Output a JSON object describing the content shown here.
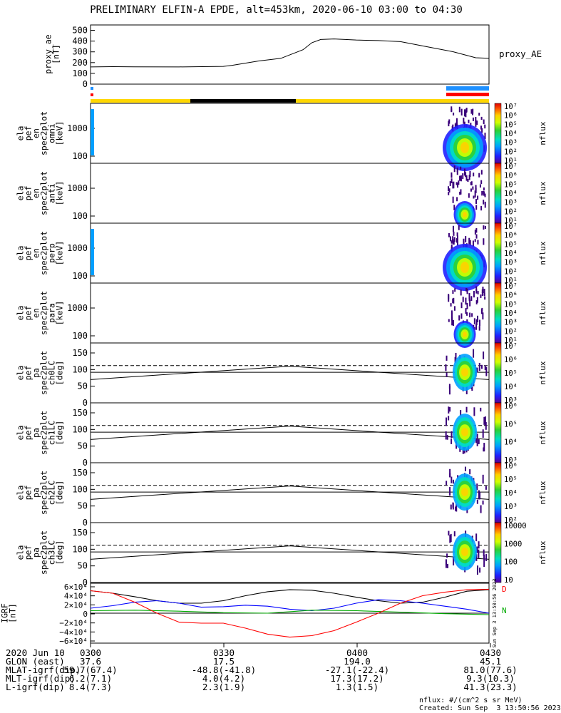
{
  "title": "PRELIMINARY ELFIN-A EPDE, alt=453km, 2020-06-10 03:00 to 04:30",
  "proxy_ae": {
    "ylabel": "proxy_ae\n[nT]",
    "side_label": "proxy_AE",
    "yticks": [
      "500",
      "400",
      "300",
      "200",
      "100",
      "0"
    ],
    "ylim": [
      0,
      550
    ]
  },
  "panels": [
    {
      "ylabel": "ela\npef\nen\nspec2plot\nomni\n[keV]",
      "yticks": [
        "1000",
        "100"
      ],
      "kind": "energy",
      "cbar": {
        "label": "nflux",
        "ticks": [
          "10⁷",
          "10⁶",
          "10⁵",
          "10⁴",
          "10³",
          "10²",
          "10¹"
        ]
      }
    },
    {
      "ylabel": "ela\npef\nen\nspec2plot\nanti\n[keV]",
      "yticks": [
        "1000",
        "100"
      ],
      "kind": "energy",
      "cbar": {
        "label": "nflux",
        "ticks": [
          "10⁷",
          "10⁶",
          "10⁵",
          "10⁴",
          "10³",
          "10²",
          "10¹"
        ]
      }
    },
    {
      "ylabel": "ela\npef\nen\nspec2plot\nperp\n[keV]",
      "yticks": [
        "1000",
        "100"
      ],
      "kind": "energy",
      "cbar": {
        "label": "nflux",
        "ticks": [
          "10⁷",
          "10⁶",
          "10⁵",
          "10⁴",
          "10³",
          "10²",
          "10¹"
        ]
      }
    },
    {
      "ylabel": "ela\npef\nen\nspec2plot\npara\n[keV]",
      "yticks": [
        "1000",
        "100"
      ],
      "kind": "energy",
      "cbar": {
        "label": "nflux",
        "ticks": [
          "10⁷",
          "10⁶",
          "10⁵",
          "10⁴",
          "10³",
          "10²",
          "10¹"
        ]
      }
    },
    {
      "ylabel": "ela\npef\npa\nspec2plot\nch0LC\n[deg]",
      "yticks": [
        "150",
        "100",
        "50",
        "0"
      ],
      "kind": "pa",
      "cbar": {
        "label": "nflux",
        "ticks": [
          "10⁷",
          "10⁶",
          "10⁵",
          "10⁴",
          "10³"
        ]
      }
    },
    {
      "ylabel": "ela\npef\npa\nspec2plot\nch1LC\n[deg]",
      "yticks": [
        "150",
        "100",
        "50",
        "0"
      ],
      "kind": "pa",
      "cbar": {
        "label": "nflux",
        "ticks": [
          "10⁶",
          "10⁵",
          "10⁴",
          "10³"
        ]
      }
    },
    {
      "ylabel": "ela\npef\npa\nspec2plot\nch2LC\n[deg]",
      "yticks": [
        "150",
        "100",
        "50",
        "0"
      ],
      "kind": "pa",
      "cbar": {
        "label": "nflux",
        "ticks": [
          "10⁶",
          "10⁵",
          "10⁴",
          "10³",
          "10²"
        ]
      }
    },
    {
      "ylabel": "ela\npef\npa\nspec2plot\nch3LC\n[deg]",
      "yticks": [
        "150",
        "100",
        "50",
        "0"
      ],
      "kind": "pa",
      "cbar": {
        "label": "nflux",
        "ticks": [
          "10000",
          "1000",
          "100",
          "10"
        ]
      }
    }
  ],
  "grf": {
    "ylabel": "IGRF\n[nT]",
    "yticks": [
      "6×10⁴",
      "4×10⁴",
      "2×10⁴",
      "0",
      "−2×10⁴",
      "−4×10⁴",
      "−6×10⁴"
    ],
    "ylim": [
      -60000,
      60000
    ],
    "legend": [
      "D",
      "N"
    ],
    "stamp": "Sun Sep  3 13:50:56 2023"
  },
  "chart_data": {
    "type": "line",
    "title": "PRELIMINARY ELFIN-A EPDE, alt=453km, 2020-06-10 03:00 to 04:30",
    "xlim_minutes": [
      0,
      90
    ],
    "proxy_ae": {
      "x_min": [
        0,
        5,
        10,
        20,
        30,
        32,
        38,
        43,
        48,
        50,
        52,
        55,
        60,
        65,
        70,
        75,
        82,
        87,
        90
      ],
      "y": [
        160,
        162,
        161,
        160,
        165,
        175,
        215,
        240,
        320,
        385,
        415,
        420,
        410,
        405,
        395,
        355,
        300,
        245,
        240
      ]
    },
    "grf_series": [
      {
        "color": "#000000",
        "x_min": [
          0,
          5,
          10,
          15,
          20,
          25,
          30,
          35,
          40,
          45,
          50,
          55,
          60,
          65,
          70,
          75,
          80,
          85,
          90
        ],
        "y": [
          45000,
          40000,
          33000,
          25000,
          20000,
          20000,
          25000,
          35000,
          43000,
          47000,
          46000,
          40000,
          32000,
          25000,
          20000,
          22000,
          32000,
          44000,
          47000
        ]
      },
      {
        "color": "#0000ff",
        "x_min": [
          0,
          5,
          10,
          15,
          20,
          25,
          30,
          35,
          40,
          45,
          50,
          55,
          60,
          65,
          70,
          75,
          80,
          85,
          90
        ],
        "y": [
          10000,
          15000,
          22000,
          25000,
          20000,
          12000,
          13000,
          16000,
          14000,
          8000,
          5000,
          10000,
          20000,
          27000,
          25000,
          20000,
          14000,
          8000,
          0
        ]
      },
      {
        "color": "#00aa00",
        "x_min": [
          0,
          10,
          20,
          30,
          40,
          45,
          50,
          60,
          70,
          80,
          90
        ],
        "y": [
          5000,
          6000,
          4000,
          1000,
          0,
          3000,
          6000,
          5000,
          2000,
          -1000,
          -3000
        ]
      },
      {
        "color": "#ff0000",
        "x_min": [
          0,
          5,
          10,
          15,
          20,
          25,
          30,
          35,
          40,
          45,
          50,
          55,
          60,
          65,
          70,
          75,
          80,
          85,
          90
        ],
        "y": [
          45000,
          40000,
          22000,
          0,
          -18000,
          -20000,
          -20000,
          -30000,
          -42000,
          -48000,
          -45000,
          -35000,
          -18000,
          0,
          20000,
          35000,
          42000,
          47000,
          48000
        ]
      }
    ],
    "pa_lines": {
      "dashed_deg": 112,
      "solid_deg_edges": 70,
      "solid_deg_mid": 110,
      "flat_deg": 92
    }
  },
  "ephemeris": {
    "rows": [
      {
        "label": "2020 Jun 10",
        "values": [
          "0300",
          "0330",
          "0400",
          "0430"
        ]
      },
      {
        "label": "GLON (east)",
        "values": [
          "37.6",
          "17.5",
          "194.0",
          "45.1"
        ]
      },
      {
        "label": "MLAT-igrf(dip)",
        "values": [
          "59.7(67.4)",
          "-48.8(-41.8)",
          "-27.1(-22.4)",
          "81.0(77.6)"
        ]
      },
      {
        "label": "MLT-igrf(dip)",
        "values": [
          "6.2(7.1)",
          "4.0(4.2)",
          "17.3(17.2)",
          "9.3(10.3)"
        ]
      },
      {
        "label": "L-igrf(dip)",
        "values": [
          "8.4(7.3)",
          "2.3(1.9)",
          "1.3(1.5)",
          "41.3(23.3)"
        ]
      }
    ]
  },
  "footer": {
    "units": "nflux: #/(cm^2 s sr MeV)",
    "created": "Created: Sun Sep  3 13:50:56 2023"
  }
}
